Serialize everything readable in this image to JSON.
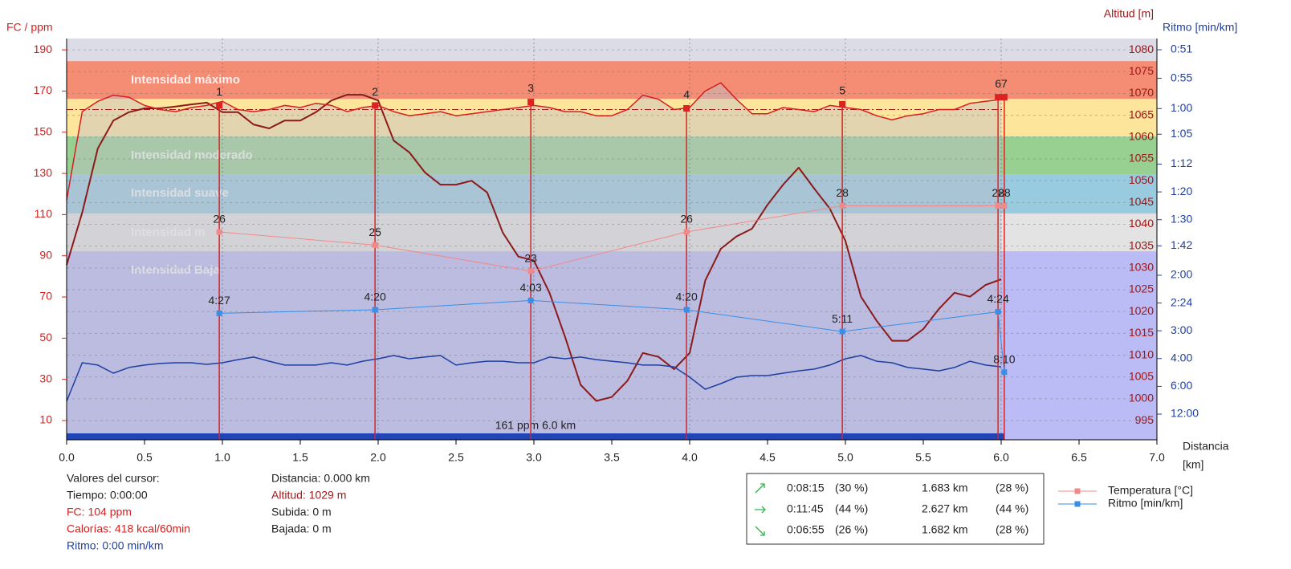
{
  "chart_data": {
    "type": "line",
    "ylabel": "FC / ppm",
    "y2label": "Altitud [m]",
    "y3label": "Ritmo [min/km]",
    "xlabel": [
      "Distancia",
      "[km]"
    ],
    "xlim": [
      0,
      7
    ],
    "xticks": [
      {
        "value": 0,
        "label": "0.0"
      },
      0.5,
      {
        "value": 1,
        "label": "1.0"
      },
      1.5,
      {
        "value": 2,
        "label": "2.0"
      },
      2.5,
      {
        "value": 3,
        "label": "3.0"
      },
      3.5,
      {
        "value": 4,
        "label": "4.0"
      },
      4.5,
      {
        "value": 5,
        "label": "5.0"
      },
      5.5,
      {
        "value": 6,
        "label": "6.0"
      },
      6.5,
      {
        "value": 7,
        "label": "7.0"
      }
    ],
    "ylim": [
      0.65,
      195.5
    ],
    "yticks": [
      10,
      30,
      50,
      70,
      90,
      110,
      130,
      150,
      170,
      190
    ],
    "y2lim": [
      990.6,
      1082.6
    ],
    "y2ticks": [
      995,
      1000,
      1005,
      1010,
      1015,
      1020,
      1025,
      1030,
      1035,
      1040,
      1045,
      1050,
      1055,
      1060,
      1065,
      1070,
      1075,
      1080
    ],
    "y3lim": [
      0.8263,
      159
    ],
    "y3scale": "reciprocal",
    "y3ticks": [
      {
        "value": 0.85,
        "label": "0:51"
      },
      {
        "value": 0.9167,
        "label": "0:55"
      },
      {
        "value": 1,
        "label": "1:00"
      },
      {
        "value": 1.0833,
        "label": "1:05"
      },
      {
        "value": 1.2,
        "label": "1:12"
      },
      {
        "value": 1.3333,
        "label": "1:20"
      },
      {
        "value": 1.5,
        "label": "1:30"
      },
      {
        "value": 1.7,
        "label": "1:42"
      },
      {
        "value": 2,
        "label": "2:00"
      },
      {
        "value": 2.4,
        "label": "2:24"
      },
      {
        "value": 3,
        "label": "3:00"
      },
      {
        "value": 4,
        "label": "4:00"
      },
      {
        "value": 6,
        "label": "6:00"
      },
      {
        "value": 12,
        "label": "12:00"
      }
    ],
    "grid": true,
    "top_color": "#dcdce6",
    "zones": [
      {
        "label": "Intensidad máximo",
        "range": [
          166.2,
          184.5
        ],
        "color": "#f58c74"
      },
      {
        "range": [
          147.9,
          166.2
        ],
        "color": "#fde59c"
      },
      {
        "label": "Intensidad moderado",
        "range": [
          129.6,
          147.9
        ],
        "color": "#98d092"
      },
      {
        "label": "Intensidad suave",
        "range": [
          110.5,
          129.6
        ],
        "color": "#98cbe0"
      },
      {
        "label": "Intensidad m",
        "range": [
          92.2,
          110.5
        ],
        "color": "#e3e3e3"
      },
      {
        "label": "Intensidad Baja",
        "range": [
          0.65,
          92.2
        ],
        "color": "#bbbbf6"
      }
    ],
    "reference_line": 161,
    "reference_color": "#a01818",
    "distance_bar": [
      0,
      6.02
    ],
    "distance_bar_color": "#2045b5",
    "annotation": "161 ppm 6.0 km",
    "x": [
      0,
      0.1,
      0.2,
      0.3,
      0.4,
      0.5,
      0.6,
      0.7,
      0.8,
      0.9,
      1.0,
      1.1,
      1.2,
      1.3,
      1.4,
      1.5,
      1.6,
      1.7,
      1.8,
      1.9,
      2.0,
      2.1,
      2.2,
      2.3,
      2.4,
      2.5,
      2.6,
      2.7,
      2.8,
      2.9,
      3.0,
      3.1,
      3.2,
      3.3,
      3.4,
      3.5,
      3.6,
      3.7,
      3.8,
      3.9,
      4.0,
      4.1,
      4.2,
      4.3,
      4.4,
      4.5,
      4.6,
      4.7,
      4.8,
      4.9,
      5.0,
      5.1,
      5.2,
      5.3,
      5.4,
      5.5,
      5.6,
      5.7,
      5.8,
      5.9,
      6.0
    ],
    "series": [
      {
        "axis": "y2",
        "color": "#8b1a1a",
        "width": 2,
        "values": [
          1030.7,
          1042.7,
          1057.4,
          1063.8,
          1065.7,
          1066.6,
          1066.6,
          1067,
          1067.5,
          1067.9,
          1065.7,
          1065.7,
          1062.9,
          1062,
          1063.8,
          1063.8,
          1065.7,
          1068.4,
          1069.7,
          1069.7,
          1068.4,
          1059.2,
          1056.5,
          1051.9,
          1049.1,
          1049.1,
          1050,
          1047.3,
          1038.1,
          1032.6,
          1031.7,
          1024.3,
          1014.2,
          1003.2,
          999.5,
          1000.4,
          1004.1,
          1010.5,
          1009.6,
          1006.8,
          1010.5,
          1027.1,
          1034.4,
          1037.2,
          1039,
          1044.5,
          1049.1,
          1053,
          1048.2,
          1043.6,
          1036.2,
          1023.4,
          1017.9,
          1013.3,
          1013.3,
          1016,
          1020.6,
          1024.3,
          1023.4,
          1026.1,
          1027.4
        ]
      },
      {
        "axis": "y",
        "color": "#d42020",
        "width": 1.5,
        "area": "rgba(190,190,200,0.45)",
        "values": [
          117,
          160,
          165,
          168,
          167,
          163,
          161,
          160,
          162,
          163,
          165,
          161,
          160,
          161,
          163,
          162,
          164,
          163,
          160,
          162,
          163,
          160,
          158,
          159,
          160,
          158,
          159,
          160,
          161,
          162,
          163,
          162,
          160,
          160,
          158,
          158,
          161,
          168,
          166,
          161,
          162,
          170,
          174,
          166,
          159,
          159,
          162,
          161,
          160,
          163,
          162,
          161,
          158,
          156,
          158,
          159,
          161,
          161,
          164,
          165,
          166
        ]
      },
      {
        "axis": "y3",
        "color": "#1f3f9f",
        "width": 1.5,
        "values": [
          8.21,
          4.21,
          4.34,
          4.85,
          4.48,
          4.34,
          4.25,
          4.21,
          4.21,
          4.3,
          4.21,
          4.05,
          3.93,
          4.13,
          4.34,
          4.34,
          4.34,
          4.21,
          4.34,
          4.13,
          4.01,
          3.86,
          4.01,
          3.93,
          3.86,
          4.34,
          4.21,
          4.13,
          4.13,
          4.21,
          4.21,
          3.93,
          4.01,
          3.93,
          4.05,
          4.13,
          4.21,
          4.34,
          4.34,
          4.44,
          5.15,
          6.33,
          5.72,
          5.15,
          5.03,
          5.03,
          4.85,
          4.69,
          4.58,
          4.34,
          4.01,
          3.86,
          4.13,
          4.21,
          4.48,
          4.58,
          4.69,
          4.48,
          4.13,
          4.34,
          4.44
        ]
      }
    ],
    "laps": {
      "x": [
        0.98,
        1.98,
        2.98,
        3.98,
        4.98,
        5.98,
        6.02
      ],
      "labels": [
        "1",
        "2",
        "3",
        "4",
        "5",
        "6",
        "7"
      ],
      "hr": [
        163,
        163,
        164.7,
        161.6,
        163.6,
        167,
        167
      ],
      "color": "#dd2222",
      "series": [
        {
          "name": "Temperatura [°C]",
          "color": "#f08a8a",
          "ylim": [
            10.1,
            40.8
          ],
          "values": [
            26,
            25,
            23,
            26,
            28,
            28,
            28
          ]
        },
        {
          "name": "Ritmo [min/km]",
          "color": "#3a8ee6",
          "ylim": [
            1.425,
            200
          ],
          "scale": "reciprocal",
          "values": [
            4.45,
            4.3333,
            4.05,
            4.3333,
            5.1833,
            4.4,
            8.1667
          ],
          "value_labels": [
            "4:27",
            "4:20",
            "4:03",
            "4:20",
            "5:11",
            "4:24",
            "8:10"
          ]
        }
      ]
    }
  },
  "cursor": {
    "title": "Valores del cursor:",
    "left": [
      "Tiempo: 0:00:00",
      "FC: 104 ppm",
      "Calorías: 418 kcal/60min",
      "Ritmo: 0:00 min/km"
    ],
    "right": [
      "Distancia: 0.000 km",
      "Altitud: 1029 m",
      "Subida: 0 m",
      "Bajada: 0 m"
    ]
  },
  "stats": [
    [
      "0:08:15",
      "(30 %)",
      "1.683 km",
      "(28 %)"
    ],
    [
      "0:11:45",
      "(44 %)",
      "2.627 km",
      "(44 %)"
    ],
    [
      "0:06:55",
      "(26 %)",
      "1.682 km",
      "(28 %)"
    ]
  ]
}
